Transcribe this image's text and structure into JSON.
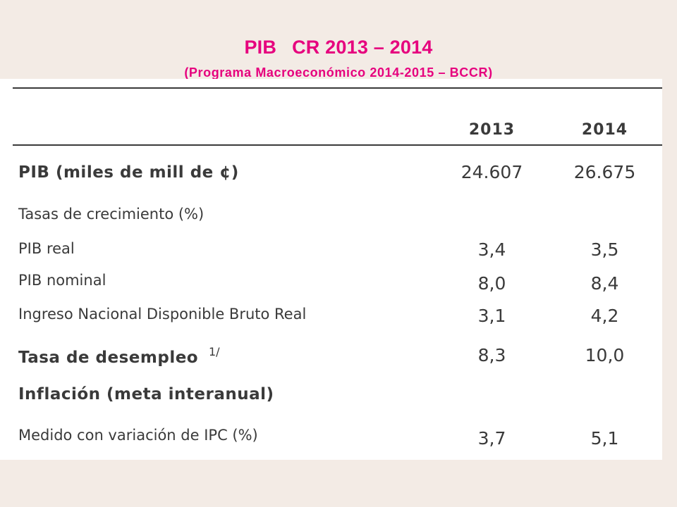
{
  "slide": {
    "title_part1": "PIB",
    "title_part2": "CR 2013 – 2014",
    "subtitle": "(Programa Macroeconómico 2014-2015 – BCCR)"
  },
  "table": {
    "columns": [
      "2013",
      "2014"
    ],
    "rows": [
      {
        "label": "PIB (miles de mill de ¢)",
        "v2013": "24.607",
        "v2014": "26.675"
      },
      {
        "label": "Tasas de crecimiento (%)",
        "v2013": "",
        "v2014": ""
      },
      {
        "label": "PIB real",
        "v2013": "3,4",
        "v2014": "3,5"
      },
      {
        "label": "PIB nominal",
        "v2013": "8,0",
        "v2014": "8,4"
      },
      {
        "label": "Ingreso Nacional Disponible Bruto Real",
        "v2013": "3,1",
        "v2014": "4,2"
      },
      {
        "label": "Tasa de desempleo",
        "note": "1/",
        "v2013": "8,3",
        "v2014": "10,0"
      },
      {
        "label": "Inflación (meta interanual)",
        "v2013": "",
        "v2014": ""
      },
      {
        "label": "Medido con variación de IPC  (%)",
        "v2013": "3,7",
        "v2014": "5,1"
      }
    ]
  }
}
